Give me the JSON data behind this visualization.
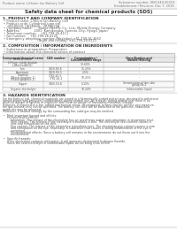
{
  "title": "Safety data sheet for chemical products (SDS)",
  "header_left": "Product name: Lithium Ion Battery Cell",
  "header_right_line1": "Substance number: SER-049-00019",
  "header_right_line2": "Establishment / Revision: Dec 7, 2016",
  "section1_title": "1. PRODUCT AND COMPANY IDENTIFICATION",
  "section1_lines": [
    " • Product name: Lithium Ion Battery Cell",
    " • Product code: Cylindrical-type cell",
    "     UR18650J, UR18650L, UR18650A",
    " • Company name:      Sanyo Electric Co., Ltd., Mobile Energy Company",
    " • Address:              2001  Kamikosaka, Sumoto-City, Hyogo, Japan",
    " • Telephone number:    +81-799-26-4111",
    " • Fax number:    +81-799-26-4120",
    " • Emergency telephone number (Weekday) +81-799-26-3662",
    "                                   (Night and holiday) +81-799-26-4121"
  ],
  "section2_title": "2. COMPOSITION / INFORMATION ON INGREDIENTS",
  "section2_intro": " • Substance or preparation: Preparation",
  "section2_sub": " • Information about the chemical nature of product",
  "table_col_headers_row1": [
    "Component/chemical name",
    "CAS number",
    "Concentration /",
    "Classification and"
  ],
  "table_col_headers_row2": [
    "",
    "",
    "Concentration range",
    "hazard labeling"
  ],
  "table_col_headers_row3": [
    "Several name",
    "",
    "(30-60%)",
    ""
  ],
  "table_rows": [
    [
      "Lithium cobalt dioxide",
      "-",
      "30-60%",
      "-"
    ],
    [
      "(LiMnxCoxNiO2)",
      "",
      "",
      ""
    ],
    [
      "Iron",
      "7439-89-6",
      "15-25%",
      "-"
    ],
    [
      "Aluminum",
      "7429-90-5",
      "2-5%",
      "-"
    ],
    [
      "Graphite",
      "",
      "",
      ""
    ],
    [
      "(Mixed graphite-1)",
      "7782-42-5",
      "10-25%",
      "-"
    ],
    [
      "(Mixed graphite-2)",
      "7782-44-2",
      "",
      ""
    ],
    [
      "Copper",
      "7440-50-8",
      "5-15%",
      "Sensitization of the skin"
    ],
    [
      "",
      "",
      "",
      "group No.2"
    ],
    [
      "Organic electrolyte",
      "-",
      "10-20%",
      "Inflammable liquid"
    ]
  ],
  "section3_title": "3. HAZARDS IDENTIFICATION",
  "section3_text": [
    "For the battery cell, chemical materials are stored in a hermetically sealed metal case, designed to withstand",
    "temperatures and pressures-combinations during normal use. As a result, during normal use, there is no",
    "physical danger of ignition or explosion and there no danger of hazardous materials leakage.",
    "However, if exposed to a fire, added mechanical shock, decomposed, written electric without any measure,",
    "the gas release vent can be operated. The battery cell case will be breached at fire patterns, hazardous",
    "materials may be released.",
    "Moreover, if heated strongly by the surrounding fire, solid gas may be emitted.",
    "",
    " •  Most important hazard and effects:",
    "     Human health effects:",
    "         Inhalation: The release of the electrolyte has an anesthesia action and stimulates in respiratory tract.",
    "         Skin contact: The release of the electrolyte stimulates a skin. The electrolyte skin contact causes a",
    "         sore and stimulation on the skin.",
    "         Eye contact: The release of the electrolyte stimulates eyes. The electrolyte eye contact causes a sore",
    "         and stimulation on the eye. Especially, a substance that causes a strong inflammation of the eye is",
    "         contained.",
    "         Environmental effects: Since a battery cell remains in the environment, do not throw out it into the",
    "         environment.",
    "",
    " •  Specific hazards:",
    "     If the electrolyte contacts with water, it will generate detrimental hydrogen fluoride.",
    "     Since the seal electrolyte is inflammable liquid, do not bring close to fire."
  ],
  "bg_color": "#ffffff",
  "text_color": "#555555",
  "header_text_color": "#777777",
  "title_color": "#333333",
  "section_color": "#333333",
  "table_header_bg": "#e8e8e8",
  "table_line_color": "#aaaaaa",
  "divider_color": "#999999"
}
